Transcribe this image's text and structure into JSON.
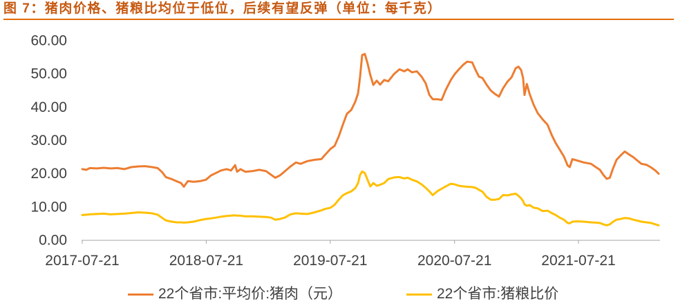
{
  "colors": {
    "title": "#C65911",
    "title_rule": "#E46C0A",
    "axis": "#A6A6A6",
    "text": "#404040"
  },
  "chart_data": {
    "type": "line",
    "title": "图 7：猪肉价格、猪粮比均位于低位，后续有望反弹（单位：每千克）",
    "xlabel": "",
    "ylabel": "",
    "xlim": [
      "2017-07-21",
      "2022-03-18"
    ],
    "ylim": [
      0,
      60
    ],
    "xticks": [
      "2017-07-21",
      "2018-07-21",
      "2019-07-21",
      "2020-07-21",
      "2021-07-21"
    ],
    "yticks": [
      "0.00",
      "10.00",
      "20.00",
      "30.00",
      "40.00",
      "50.00",
      "60.00"
    ],
    "grid": false,
    "legend": "bottom",
    "x": [
      "2017-07-21",
      "2017-08-02",
      "2017-08-12",
      "2017-09-02",
      "2017-09-22",
      "2017-10-12",
      "2017-11-02",
      "2017-11-22",
      "2017-12-12",
      "2018-01-02",
      "2018-01-22",
      "2018-02-12",
      "2018-02-28",
      "2018-03-14",
      "2018-03-24",
      "2018-04-10",
      "2018-04-26",
      "2018-05-08",
      "2018-05-16",
      "2018-05-28",
      "2018-06-14",
      "2018-07-04",
      "2018-07-20",
      "2018-08-04",
      "2018-08-18",
      "2018-09-03",
      "2018-09-19",
      "2018-10-02",
      "2018-10-14",
      "2018-10-20",
      "2018-10-30",
      "2018-11-13",
      "2018-12-04",
      "2018-12-24",
      "2019-01-13",
      "2019-01-28",
      "2019-02-09",
      "2019-02-23",
      "2019-03-09",
      "2019-03-26",
      "2019-04-11",
      "2019-04-25",
      "2019-05-15",
      "2019-06-05",
      "2019-06-25",
      "2019-07-05",
      "2019-07-22",
      "2019-08-03",
      "2019-08-15",
      "2019-08-27",
      "2019-09-08",
      "2019-09-21",
      "2019-10-03",
      "2019-10-11",
      "2019-10-17",
      "2019-10-23",
      "2019-10-31",
      "2019-11-08",
      "2019-11-16",
      "2019-11-25",
      "2019-12-05",
      "2019-12-15",
      "2019-12-27",
      "2020-01-08",
      "2020-01-25",
      "2020-02-10",
      "2020-02-24",
      "2020-03-05",
      "2020-03-18",
      "2020-04-01",
      "2020-04-15",
      "2020-04-27",
      "2020-05-08",
      "2020-05-18",
      "2020-06-01",
      "2020-06-13",
      "2020-06-25",
      "2020-07-10",
      "2020-07-22",
      "2020-08-03",
      "2020-08-15",
      "2020-08-27",
      "2020-09-11",
      "2020-09-21",
      "2020-10-01",
      "2020-10-11",
      "2020-10-24",
      "2020-11-05",
      "2020-11-17",
      "2020-11-29",
      "2020-12-11",
      "2020-12-24",
      "2021-01-05",
      "2021-01-17",
      "2021-01-25",
      "2021-02-02",
      "2021-02-08",
      "2021-02-12",
      "2021-02-19",
      "2021-02-27",
      "2021-03-11",
      "2021-03-23",
      "2021-04-06",
      "2021-04-21",
      "2021-05-03",
      "2021-05-15",
      "2021-05-27",
      "2021-06-08",
      "2021-06-19",
      "2021-06-25",
      "2021-07-03",
      "2021-07-17",
      "2021-08-06",
      "2021-08-27",
      "2021-09-10",
      "2021-09-22",
      "2021-10-02",
      "2021-10-12",
      "2021-10-21",
      "2021-10-31",
      "2021-11-10",
      "2021-11-22",
      "2021-12-04",
      "2021-12-17",
      "2021-12-29",
      "2022-01-10",
      "2022-01-22",
      "2022-02-06",
      "2022-02-20",
      "2022-03-04",
      "2022-03-14"
    ],
    "series": [
      {
        "name": "22个省市:平均价:猪肉（元）",
        "color": "#ED7D31",
        "values": [
          21.2,
          21.0,
          21.5,
          21.4,
          21.6,
          21.4,
          21.5,
          21.2,
          21.8,
          22.0,
          22.1,
          21.8,
          21.5,
          20.2,
          18.8,
          18.2,
          17.5,
          17.0,
          15.9,
          17.6,
          17.4,
          17.6,
          18.0,
          19.3,
          20.0,
          20.8,
          21.2,
          20.8,
          22.4,
          20.4,
          21.2,
          20.4,
          20.6,
          21.0,
          20.6,
          19.5,
          18.6,
          19.3,
          20.5,
          22.0,
          23.2,
          22.8,
          23.6,
          24.0,
          24.2,
          25.4,
          27.3,
          28.2,
          31.0,
          34.5,
          37.8,
          39.0,
          41.5,
          44.0,
          49.0,
          55.5,
          55.8,
          53.0,
          49.5,
          46.5,
          47.8,
          46.6,
          48.0,
          47.6,
          49.8,
          51.2,
          50.6,
          51.2,
          50.3,
          50.6,
          49.0,
          47.0,
          43.5,
          42.2,
          42.2,
          42.0,
          45.0,
          48.0,
          49.8,
          51.2,
          52.5,
          53.5,
          53.3,
          51.0,
          49.0,
          48.6,
          46.5,
          44.8,
          43.8,
          43.0,
          45.5,
          47.5,
          48.8,
          51.5,
          52.0,
          51.0,
          48.5,
          43.5,
          46.8,
          43.8,
          40.5,
          38.0,
          36.2,
          34.5,
          31.5,
          29.0,
          27.0,
          25.0,
          22.3,
          21.8,
          24.2,
          23.8,
          23.2,
          22.8,
          21.8,
          21.0,
          19.5,
          18.3,
          18.6,
          21.5,
          24.0,
          25.3,
          26.5,
          25.6,
          24.8,
          23.8,
          22.8,
          22.5,
          21.7,
          20.8,
          19.8
        ]
      },
      {
        "name": "22个省市:猪粮比价",
        "color": "#FFC000",
        "values": [
          7.4,
          7.5,
          7.6,
          7.7,
          7.8,
          7.6,
          7.7,
          7.8,
          8.0,
          8.2,
          8.1,
          7.9,
          7.5,
          6.5,
          5.8,
          5.4,
          5.2,
          5.2,
          5.1,
          5.2,
          5.4,
          5.9,
          6.2,
          6.4,
          6.6,
          6.9,
          7.1,
          7.2,
          7.3,
          7.2,
          7.2,
          7.0,
          7.0,
          6.9,
          6.8,
          6.6,
          6.0,
          6.2,
          6.6,
          7.6,
          7.9,
          7.8,
          7.7,
          8.2,
          8.8,
          9.2,
          9.6,
          10.5,
          12.0,
          13.3,
          14.0,
          14.5,
          15.5,
          17.0,
          19.5,
          20.5,
          20.0,
          18.0,
          16.0,
          17.0,
          16.2,
          16.5,
          17.0,
          18.2,
          18.7,
          18.8,
          18.4,
          18.6,
          18.0,
          17.5,
          16.6,
          15.6,
          14.5,
          13.4,
          14.6,
          15.3,
          16.0,
          16.8,
          16.6,
          16.2,
          16.0,
          15.9,
          15.8,
          15.6,
          15.0,
          14.4,
          12.8,
          12.0,
          12.0,
          12.2,
          13.4,
          13.3,
          13.6,
          13.8,
          13.2,
          12.4,
          11.6,
          10.6,
          10.2,
          10.4,
          9.6,
          9.4,
          8.6,
          8.7,
          8.0,
          7.4,
          6.6,
          6.0,
          5.0,
          4.9,
          5.4,
          5.5,
          5.4,
          5.2,
          5.1,
          5.0,
          4.6,
          4.3,
          4.6,
          5.4,
          6.0,
          6.2,
          6.5,
          6.4,
          6.0,
          5.7,
          5.4,
          5.2,
          5.0,
          4.6,
          4.3
        ]
      }
    ]
  }
}
